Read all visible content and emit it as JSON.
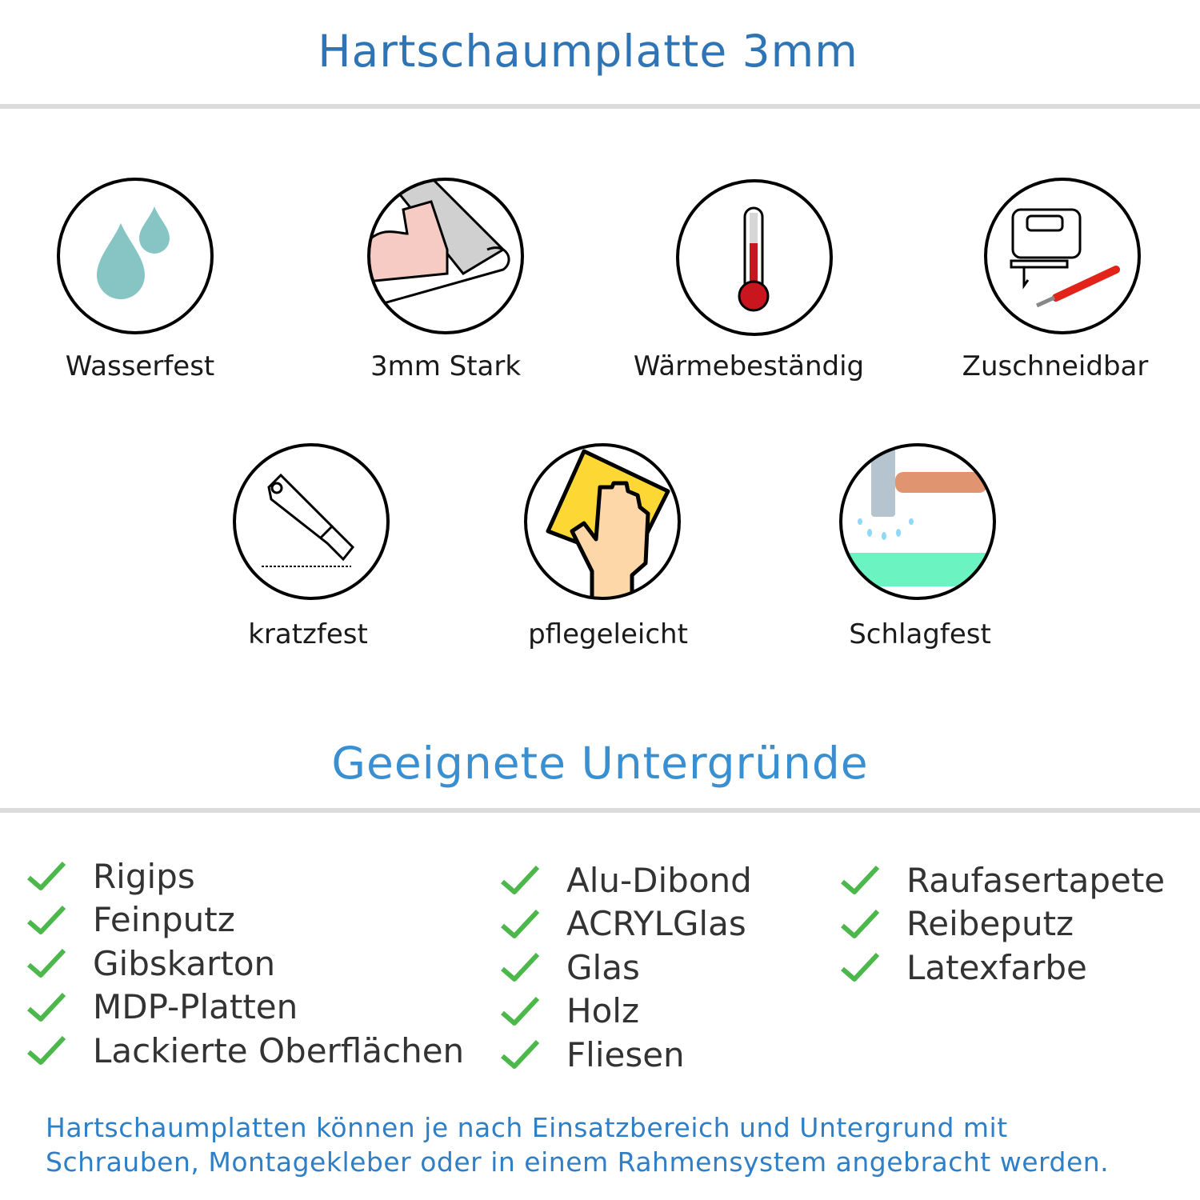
{
  "header": {
    "title": "Hartschaumplatte 3mm"
  },
  "features": [
    {
      "label": "Wasserfest",
      "icon": "water-drops-icon"
    },
    {
      "label": "3mm Stark",
      "icon": "strong-arm-icon"
    },
    {
      "label": "Wärmebeständig",
      "icon": "thermometer-icon"
    },
    {
      "label": "Zuschneidbar",
      "icon": "jigsaw-cutter-icon"
    },
    {
      "label": "kratzfest",
      "icon": "cutter-knife-icon"
    },
    {
      "label": "pflegeleicht",
      "icon": "hand-cloth-icon"
    },
    {
      "label": "Schlagfest",
      "icon": "hammer-icon"
    }
  ],
  "surfaces": {
    "title": "Geeignete Untergründe",
    "columns": [
      [
        "Rigips",
        "Feinputz",
        "Gibskarton",
        "MDP-Platten",
        "Lackierte Oberflächen"
      ],
      [
        "Alu-Dibond",
        "ACRYLGlas",
        "Glas",
        "Holz",
        "Fliesen"
      ],
      [
        "Raufasertapete",
        "Reibeputz",
        "Latexfarbe"
      ]
    ]
  },
  "footer": {
    "line1": "Hartschaumplatten können je nach Einsatzbereich und Untergrund mit",
    "line2": "Schrauben, Montagekleber oder in einem Rahmensystem angebracht werden."
  },
  "colors": {
    "title": "#2f75b5",
    "check": "#4cb84c",
    "footer": "#2e7fc6"
  }
}
